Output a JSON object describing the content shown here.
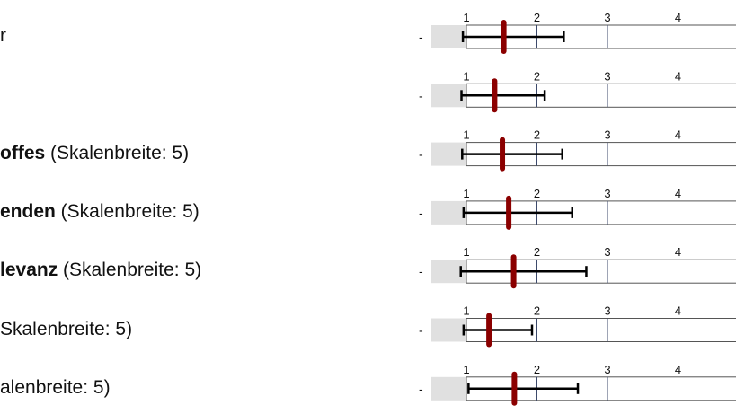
{
  "rows": [
    {
      "bold": "",
      "rest": "r",
      "value": 1.53,
      "err_low": 0.95,
      "err_high": 2.38
    },
    {
      "bold": "",
      "rest": "",
      "value": 1.4,
      "err_low": 0.93,
      "err_high": 2.11
    },
    {
      "bold": "offes",
      "rest": " (Skalenbreite: 5)",
      "value": 1.51,
      "err_low": 0.94,
      "err_high": 2.36
    },
    {
      "bold": "enden",
      "rest": " (Skalenbreite: 5)",
      "value": 1.6,
      "err_low": 0.96,
      "err_high": 2.5
    },
    {
      "bold": "levanz",
      "rest": " (Skalenbreite: 5)",
      "value": 1.67,
      "err_low": 0.92,
      "err_high": 2.7
    },
    {
      "bold": "",
      "rest": "Skalenbreite: 5)",
      "value": 1.32,
      "err_low": 0.96,
      "err_high": 1.93
    },
    {
      "bold": "",
      "rest": "alenbreite: 5)",
      "value": 1.68,
      "err_low": 1.03,
      "err_high": 2.58
    }
  ],
  "chart_data": {
    "type": "scatter",
    "x_ticks": [
      "1",
      "2",
      "3",
      "4"
    ],
    "xlim": [
      1,
      5
    ],
    "dash_label": "-",
    "series": [
      {
        "values": [
          1.53,
          1.4,
          1.51,
          1.6,
          1.67,
          1.32,
          1.68
        ],
        "error_low": [
          0.95,
          0.93,
          0.94,
          0.96,
          0.92,
          0.96,
          1.03
        ],
        "error_high": [
          2.38,
          2.11,
          2.36,
          2.5,
          2.7,
          1.93,
          2.58
        ]
      }
    ]
  },
  "colors": {
    "mean_marker": "#8b0000",
    "error_bar": "#000000",
    "grid": "#3d4a6b",
    "box_border": "#555555",
    "below_scale_fill": "#e0e0e0",
    "text": "#111111"
  }
}
